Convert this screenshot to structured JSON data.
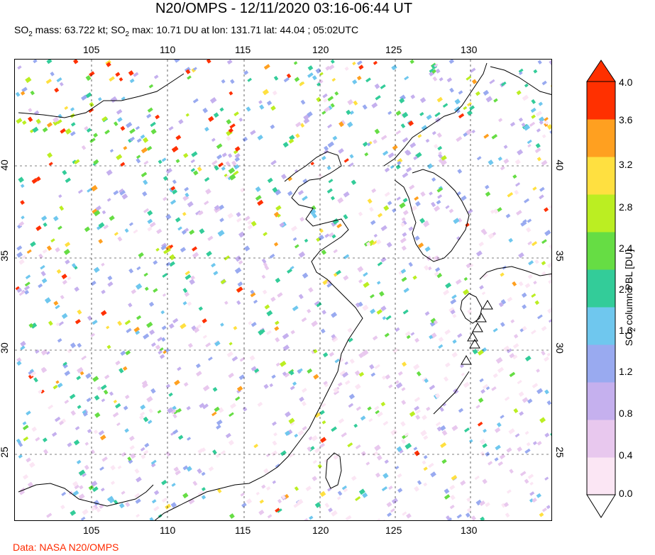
{
  "title": "N20/OMPS - 12/11/2020 03:16-06:44 UT",
  "subtitle": {
    "so2_prefix": "SO",
    "so2_sub": "2",
    "mass_text": " mass: 63.722 kt; SO",
    "max_sub": "2",
    "max_text": " max: 10.71 DU at lon: 131.71 lat: 44.04 ; 05:02UTC"
  },
  "map": {
    "lon_ticks": [
      "105",
      "110",
      "115",
      "120",
      "125",
      "130"
    ],
    "lat_ticks": [
      "40",
      "35",
      "30",
      "25"
    ],
    "lon_range": [
      100,
      135
    ],
    "lat_range": [
      20,
      47
    ]
  },
  "colorbar": {
    "title_prefix": "SO",
    "title_sub": "2",
    "title_rest": " column PBL [DU]",
    "ticks": [
      "4.0",
      "3.6",
      "3.2",
      "2.8",
      "2.4",
      "2.0",
      "1.6",
      "1.2",
      "0.8",
      "0.4",
      "0.0"
    ],
    "colors": [
      "#fbe6f4",
      "#e8c8ee",
      "#c5b0ee",
      "#99aaf0",
      "#6fc7ee",
      "#33cc99",
      "#66dd44",
      "#bbee22",
      "#ffe040",
      "#ffa020",
      "#ff3000"
    ]
  },
  "credit": "Data: NASA N20/OMPS"
}
